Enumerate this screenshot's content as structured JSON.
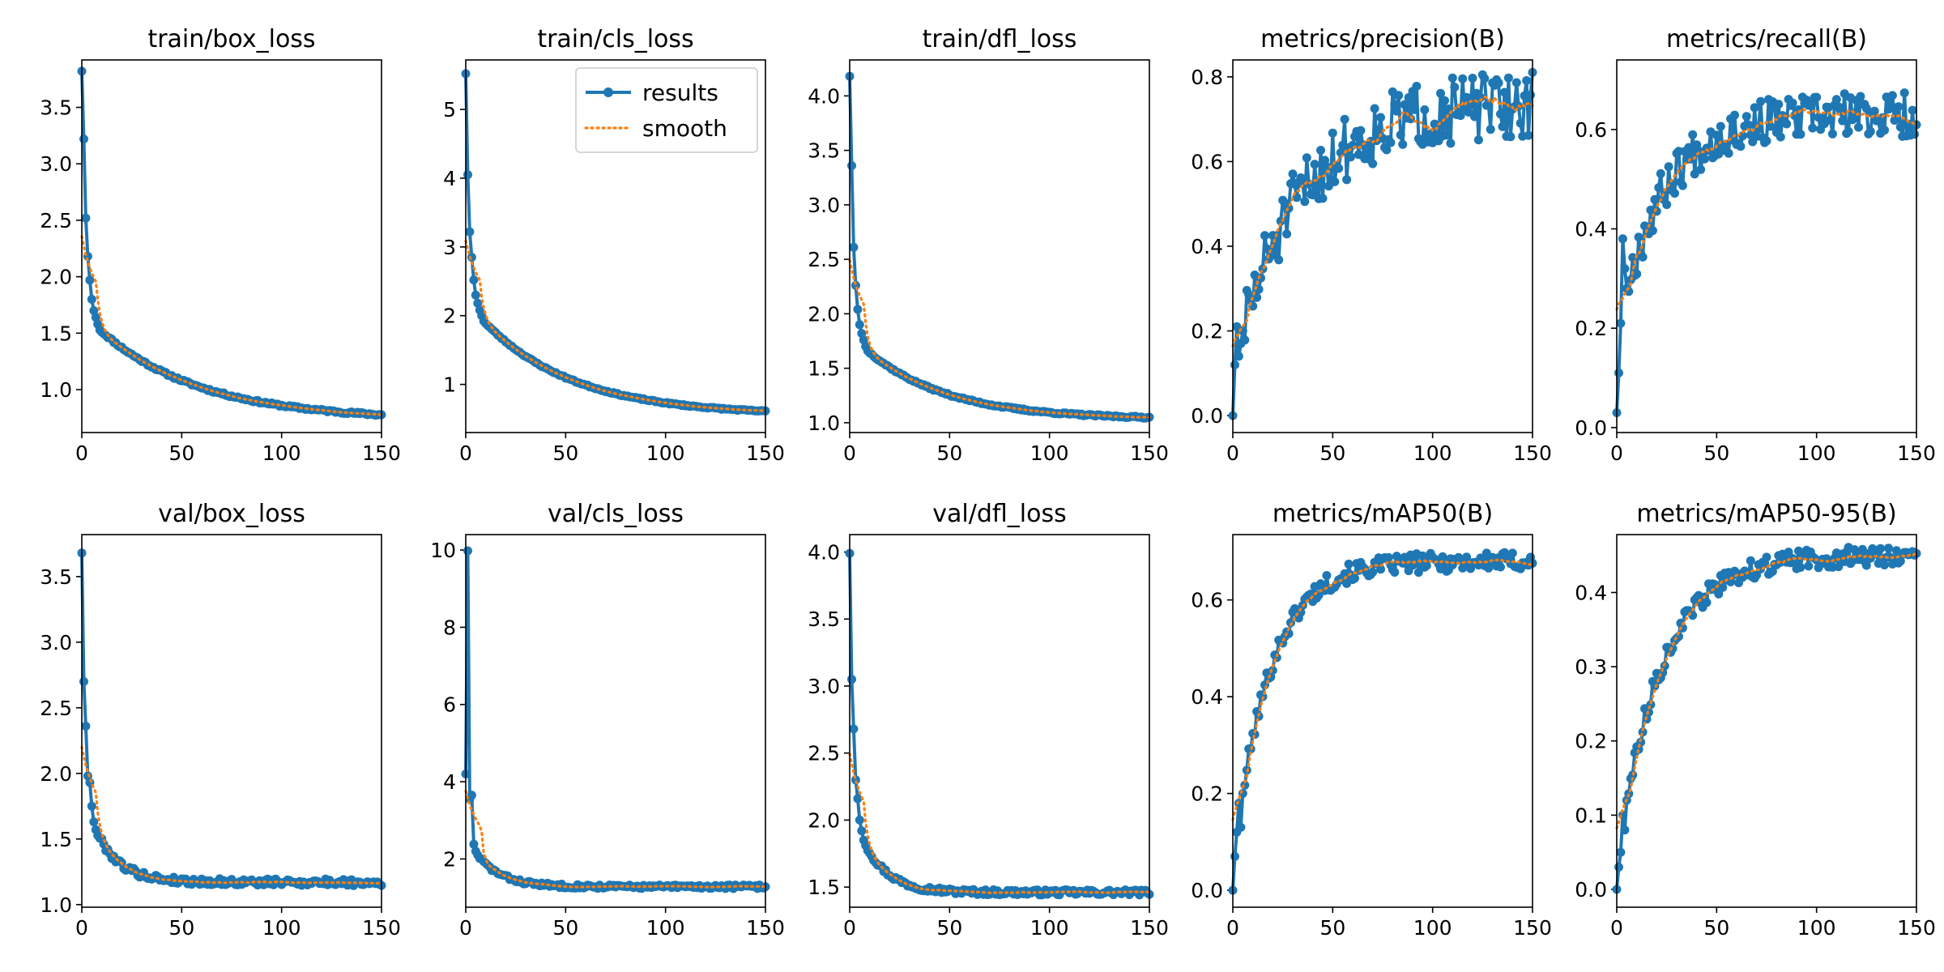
{
  "chart_data": [
    {
      "type": "line",
      "title": "train/box_loss",
      "xlim": [
        0,
        150
      ],
      "ylim": [
        0.62,
        3.92
      ],
      "xticks": [
        0,
        50,
        100,
        150
      ],
      "yticks": [
        1.0,
        1.5,
        2.0,
        2.5,
        3.0,
        3.5
      ],
      "legend": false,
      "shape": "decay",
      "start": [
        3.82,
        3.22,
        2.52,
        2.18,
        1.97,
        1.8,
        1.7,
        1.64,
        1.58,
        1.53
      ],
      "final": 0.73,
      "tau": 50,
      "noise": 0.01,
      "seed": 11
    },
    {
      "type": "line",
      "title": "train/cls_loss",
      "xlim": [
        0,
        150
      ],
      "ylim": [
        0.3,
        5.72
      ],
      "xticks": [
        0,
        50,
        100,
        150
      ],
      "yticks": [
        1,
        2,
        3,
        4,
        5
      ],
      "legend": true,
      "legend_placement": "top-right",
      "shape": "decay",
      "start": [
        5.52,
        4.05,
        3.22,
        2.85,
        2.52,
        2.3,
        2.18,
        2.08,
        2.0,
        1.92
      ],
      "final": 0.55,
      "tau": 45,
      "noise": 0.01,
      "seed": 23
    },
    {
      "type": "line",
      "title": "train/dfl_loss",
      "xlim": [
        0,
        150
      ],
      "ylim": [
        0.91,
        4.33
      ],
      "xticks": [
        0,
        50,
        100,
        150
      ],
      "yticks": [
        1.0,
        1.5,
        2.0,
        2.5,
        3.0,
        3.5,
        4.0
      ],
      "legend": false,
      "shape": "decay",
      "start": [
        4.18,
        3.36,
        2.61,
        2.26,
        2.04,
        1.9,
        1.82,
        1.76,
        1.7,
        1.66
      ],
      "final": 1.03,
      "tau": 40,
      "noise": 0.008,
      "seed": 37
    },
    {
      "type": "line",
      "title": "metrics/precision(B)",
      "xlim": [
        0,
        150
      ],
      "ylim": [
        -0.04,
        0.84
      ],
      "xticks": [
        0,
        50,
        100,
        150
      ],
      "yticks": [
        0.0,
        0.2,
        0.4,
        0.6,
        0.8
      ],
      "legend": false,
      "shape": "rise",
      "start": [
        0.0,
        0.12,
        0.21,
        0.14,
        0.17,
        0.2
      ],
      "final": 0.74,
      "tau": 32,
      "noise": 0.06,
      "seed": 51
    },
    {
      "type": "line",
      "title": "metrics/recall(B)",
      "xlim": [
        0,
        150
      ],
      "ylim": [
        -0.01,
        0.74
      ],
      "xticks": [
        0,
        50,
        100,
        150
      ],
      "yticks": [
        0.0,
        0.2,
        0.4,
        0.6
      ],
      "legend": false,
      "shape": "rise",
      "start": [
        0.03,
        0.11,
        0.21,
        0.38,
        0.32,
        0.28
      ],
      "final": 0.63,
      "tau": 22,
      "noise": 0.035,
      "seed": 67
    },
    {
      "type": "line",
      "title": "val/box_loss",
      "xlim": [
        0,
        150
      ],
      "ylim": [
        0.98,
        3.82
      ],
      "xticks": [
        0,
        50,
        100,
        150
      ],
      "yticks": [
        1.0,
        1.5,
        2.0,
        2.5,
        3.0,
        3.5
      ],
      "legend": false,
      "shape": "decay",
      "start": [
        3.68,
        2.7,
        2.36,
        1.98,
        1.93,
        1.75,
        1.63,
        1.57
      ],
      "final": 1.17,
      "tau": 12,
      "noise": 0.025,
      "seed": 79
    },
    {
      "type": "line",
      "title": "val/cls_loss",
      "xlim": [
        0,
        150
      ],
      "ylim": [
        0.75,
        10.4
      ],
      "xticks": [
        0,
        50,
        100,
        150
      ],
      "yticks": [
        2,
        4,
        6,
        8,
        10
      ],
      "legend": false,
      "shape": "decay",
      "start": [
        4.2,
        9.98,
        3.55,
        3.65,
        2.38,
        2.2,
        2.1
      ],
      "final": 1.28,
      "tau": 12,
      "noise": 0.05,
      "seed": 83
    },
    {
      "type": "line",
      "title": "val/dfl_loss",
      "xlim": [
        0,
        150
      ],
      "ylim": [
        1.35,
        4.13
      ],
      "xticks": [
        0,
        50,
        100,
        150
      ],
      "yticks": [
        1.5,
        2.0,
        2.5,
        3.0,
        3.5,
        4.0
      ],
      "legend": false,
      "shape": "decay",
      "start": [
        3.99,
        3.05,
        2.68,
        2.3,
        2.16,
        2.0,
        1.92,
        1.85
      ],
      "final": 1.46,
      "tau": 12,
      "noise": 0.02,
      "seed": 97
    },
    {
      "type": "line",
      "title": "metrics/mAP50(B)",
      "xlim": [
        0,
        150
      ],
      "ylim": [
        -0.035,
        0.735
      ],
      "xticks": [
        0,
        50,
        100,
        150
      ],
      "yticks": [
        0.0,
        0.2,
        0.4,
        0.6
      ],
      "legend": false,
      "shape": "rise",
      "start": [
        0.0,
        0.07,
        0.12,
        0.18,
        0.13,
        0.2
      ],
      "final": 0.68,
      "tau": 18,
      "noise": 0.015,
      "seed": 101
    },
    {
      "type": "line",
      "title": "metrics/mAP50-95(B)",
      "xlim": [
        0,
        150
      ],
      "ylim": [
        -0.024,
        0.478
      ],
      "xticks": [
        0,
        50,
        100,
        150
      ],
      "yticks": [
        0.0,
        0.1,
        0.2,
        0.3,
        0.4
      ],
      "legend": false,
      "shape": "rise",
      "start": [
        0.0,
        0.03,
        0.05,
        0.1,
        0.08,
        0.12
      ],
      "final": 0.45,
      "tau": 22,
      "noise": 0.01,
      "seed": 113
    }
  ],
  "series": [
    {
      "name": "results",
      "color": "#1f77b4",
      "style": "solid-with-markers"
    },
    {
      "name": "smooth",
      "color": "#ff7f0e",
      "style": "dotted"
    }
  ],
  "epochs": 150
}
